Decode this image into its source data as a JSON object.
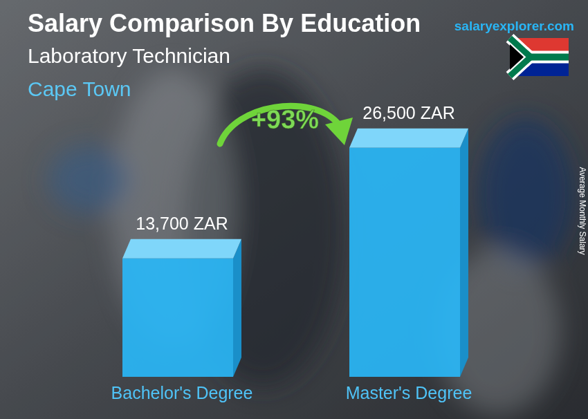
{
  "chart_data": {
    "type": "bar",
    "title": "Salary Comparison By Education",
    "subtitle": "Laboratory Technician",
    "annotations": [
      "Cape Town",
      "salaryexplorer.com",
      "+93%"
    ],
    "y_label": "Average Monthly Salary",
    "categories": [
      "Bachelor's Degree",
      "Master's Degree"
    ],
    "values": [
      13700,
      26500
    ],
    "value_labels": [
      "13,700 ZAR",
      "26,500 ZAR"
    ],
    "data_labels": true,
    "color": "#29b6f6",
    "ylim": [
      0,
      28000
    ],
    "tick_labels": false,
    "grid": false
  }
}
